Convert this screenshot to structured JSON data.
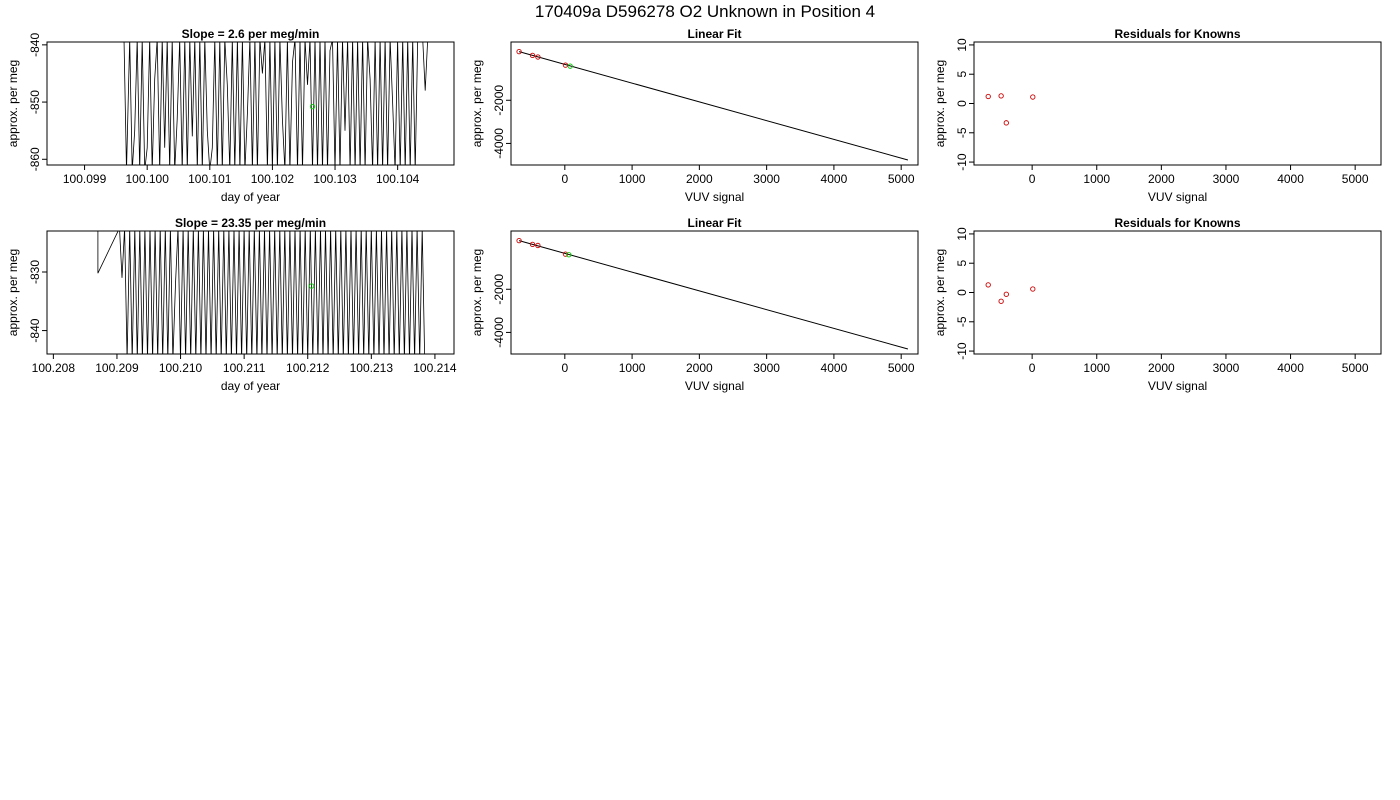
{
  "suptitle": "170409a      D596278   O2 Unknown in Position  4",
  "colors": {
    "known": "#cc0000",
    "unknown": "#00cc00",
    "line": "#000000"
  },
  "chart_data": [
    {
      "type": "line",
      "title": "Slope =  2.6  per meg/min",
      "xlabel": "day of year",
      "ylabel": "approx. per meg",
      "xlim": [
        100.0984,
        100.1049
      ],
      "ylim": [
        -861,
        -839.5
      ],
      "xticks": [
        "100.099",
        "100.100",
        "100.101",
        "100.102",
        "100.103",
        "100.104"
      ],
      "xtick_values": [
        100.099,
        100.1,
        100.101,
        100.102,
        100.103,
        100.104
      ],
      "yticks": [
        "-840",
        "-850",
        "-860"
      ],
      "ytick_values": [
        -840,
        -850,
        -860
      ],
      "trace_x": [
        100.09963,
        100.09967,
        100.09972,
        100.09976,
        100.0998,
        100.09984,
        100.09988,
        100.09992,
        100.09996,
        100.1,
        100.10004,
        100.10008,
        100.10012,
        100.10016,
        100.1002,
        100.10024,
        100.10028,
        100.10032,
        100.10036,
        100.1004,
        100.10044,
        100.10048,
        100.10052,
        100.10056,
        100.1006,
        100.10064,
        100.10068,
        100.10072,
        100.10076,
        100.1008,
        100.10084,
        100.10088,
        100.10092,
        100.10096,
        100.101,
        100.10104,
        100.10108,
        100.10112,
        100.10116,
        100.1012,
        100.10124,
        100.10128,
        100.10132,
        100.10136,
        100.1014,
        100.10144,
        100.10148,
        100.10152,
        100.10156,
        100.1016,
        100.10164,
        100.10168,
        100.10172,
        100.10176,
        100.1018,
        100.10184,
        100.10188,
        100.10192,
        100.10196,
        100.102,
        100.10204,
        100.10208,
        100.10212,
        100.10216,
        100.1022,
        100.10224,
        100.10228,
        100.10232,
        100.10236,
        100.1024,
        100.10244,
        100.10248,
        100.10252,
        100.10256,
        100.1026,
        100.10264,
        100.10268,
        100.10272,
        100.10276,
        100.1028,
        100.10284,
        100.10288,
        100.10292,
        100.10296,
        100.103,
        100.10304,
        100.10308,
        100.10312,
        100.10316,
        100.1032,
        100.10324,
        100.10328,
        100.10332,
        100.10336,
        100.1034,
        100.10344,
        100.10348,
        100.10352,
        100.10356,
        100.1036,
        100.10364,
        100.10368,
        100.10372,
        100.10376,
        100.1038,
        100.10384,
        100.10388,
        100.10392,
        100.10396,
        100.104,
        100.10404,
        100.10408,
        100.10412,
        100.10416,
        100.1042,
        100.10424,
        100.10428,
        100.10432,
        100.10436,
        100.1044,
        100.10444,
        100.10448,
        100.10452,
        100.10456,
        100.1046
      ],
      "trace_y": [
        -839,
        -862,
        -839,
        -862,
        -855,
        -839,
        -862,
        -839,
        -862,
        -858,
        -839,
        -862,
        -846,
        -839,
        -862,
        -839,
        -858,
        -839,
        -862,
        -839,
        -862,
        -853,
        -839,
        -862,
        -839,
        -862,
        -839,
        -856,
        -839,
        -862,
        -839,
        -862,
        -839,
        -855,
        -862,
        -858,
        -839,
        -862,
        -839,
        -862,
        -839,
        -847,
        -862,
        -839,
        -862,
        -839,
        -862,
        -839,
        -862,
        -852,
        -839,
        -862,
        -839,
        -862,
        -839,
        -845,
        -839,
        -862,
        -839,
        -862,
        -839,
        -862,
        -839,
        -853,
        -862,
        -839,
        -862,
        -843,
        -839,
        -862,
        -839,
        -862,
        -839,
        -847,
        -839,
        -862,
        -839,
        -862,
        -839,
        -862,
        -839,
        -862,
        -841,
        -839,
        -862,
        -839,
        -862,
        -839,
        -855,
        -839,
        -862,
        -839,
        -862,
        -839,
        -862,
        -839,
        -862,
        -839,
        -846,
        -862,
        -839,
        -862,
        -839,
        -862,
        -839,
        -862,
        -839,
        -850,
        -862,
        -839,
        -862,
        -839,
        -862,
        -839,
        -862,
        -839,
        -862,
        -839,
        -839,
        -839,
        -848,
        -839,
        -839,
        -839,
        -839
      ],
      "unknown_point": {
        "x": 100.10264,
        "y": -850.8
      }
    },
    {
      "type": "scatter",
      "title": "Linear Fit",
      "xlabel": "VUV signal",
      "ylabel": "approx. per meg",
      "xlim": [
        -800,
        5250
      ],
      "ylim": [
        -5000,
        700
      ],
      "xticks": [
        "0",
        "1000",
        "2000",
        "3000",
        "4000",
        "5000"
      ],
      "xtick_values": [
        0,
        1000,
        2000,
        3000,
        4000,
        5000
      ],
      "yticks": [
        "-2000",
        "-4000"
      ],
      "ytick_values": [
        -2000,
        -4000
      ],
      "fit_line": {
        "x": [
          -680,
          5100
        ],
        "y": [
          255,
          -4770
        ]
      },
      "known_points": [
        {
          "x": -680,
          "y": 255
        },
        {
          "x": -480,
          "y": 80
        },
        {
          "x": -400,
          "y": 5
        },
        {
          "x": 10,
          "y": -370
        }
      ],
      "unknown_point": {
        "x": 80,
        "y": -420
      }
    },
    {
      "type": "scatter",
      "title": "Residuals for Knowns",
      "xlabel": "VUV signal",
      "ylabel": "approx. per meg",
      "xlim": [
        -900,
        5400
      ],
      "ylim": [
        -10.5,
        10.5
      ],
      "xticks": [
        "0",
        "1000",
        "2000",
        "3000",
        "4000",
        "5000"
      ],
      "xtick_values": [
        0,
        1000,
        2000,
        3000,
        4000,
        5000
      ],
      "yticks": [
        "10",
        "5",
        "0",
        "-5",
        "-10"
      ],
      "ytick_values": [
        10,
        5,
        0,
        -5,
        -10
      ],
      "points": [
        {
          "x": -680,
          "y": 1.2
        },
        {
          "x": -480,
          "y": 1.3
        },
        {
          "x": -400,
          "y": -3.3
        },
        {
          "x": 10,
          "y": 1.1
        }
      ]
    },
    {
      "type": "line",
      "title": "Slope =  23.35  per meg/min",
      "xlabel": "day of year",
      "ylabel": "approx. per meg",
      "xlim": [
        100.2079,
        100.2143
      ],
      "ylim": [
        -844,
        -823
      ],
      "xticks": [
        "100.208",
        "100.209",
        "100.210",
        "100.211",
        "100.212",
        "100.213",
        "100.214"
      ],
      "xtick_values": [
        100.208,
        100.209,
        100.21,
        100.211,
        100.212,
        100.213,
        100.214
      ],
      "yticks": [
        "-830",
        "-840"
      ],
      "ytick_values": [
        -830,
        -840
      ],
      "trace_x": [
        100.20866,
        100.2087,
        100.2087,
        100.20904,
        100.20908,
        100.20912,
        100.20916,
        100.2092,
        100.20924,
        100.20928,
        100.20932,
        100.20936,
        100.2094,
        100.20944,
        100.20948,
        100.20952,
        100.20956,
        100.2096,
        100.20964,
        100.20968,
        100.20972,
        100.20976,
        100.2098,
        100.20984,
        100.20988,
        100.20992,
        100.20996,
        100.21,
        100.21004,
        100.21008,
        100.21012,
        100.21016,
        100.2102,
        100.21024,
        100.21028,
        100.21032,
        100.21036,
        100.2104,
        100.21044,
        100.21048,
        100.21052,
        100.21056,
        100.2106,
        100.21064,
        100.21068,
        100.21072,
        100.21076,
        100.2108,
        100.21084,
        100.21088,
        100.21092,
        100.21096,
        100.211,
        100.21104,
        100.21108,
        100.21112,
        100.21116,
        100.2112,
        100.21124,
        100.21128,
        100.21132,
        100.21136,
        100.2114,
        100.21144,
        100.21148,
        100.21152,
        100.21156,
        100.2116,
        100.21164,
        100.21168,
        100.21172,
        100.21176,
        100.2118,
        100.21184,
        100.21188,
        100.21192,
        100.21196,
        100.212,
        100.21204,
        100.21208,
        100.21212,
        100.21216,
        100.2122,
        100.21224,
        100.21228,
        100.21232,
        100.21236,
        100.2124,
        100.21244,
        100.21248,
        100.21252,
        100.21256,
        100.2126,
        100.21264,
        100.21268,
        100.21272,
        100.21276,
        100.2128,
        100.21284,
        100.21288,
        100.21292,
        100.21296,
        100.213,
        100.21304,
        100.21308,
        100.21312,
        100.21316,
        100.2132,
        100.21324,
        100.21328,
        100.21332,
        100.21336,
        100.2134,
        100.21344,
        100.21348,
        100.21352,
        100.21356,
        100.2136,
        100.21364,
        100.21368,
        100.21372,
        100.21376,
        100.2138,
        100.21384
      ],
      "trace_y": [
        -822.5,
        -822.5,
        -830.2,
        -822.5,
        -831,
        -822.5,
        -845,
        -822.5,
        -845,
        -822.5,
        -845,
        -822.5,
        -845,
        -822.5,
        -845,
        -822.5,
        -845,
        -822.5,
        -845,
        -822.5,
        -845,
        -822.5,
        -845,
        -822.5,
        -845,
        -832,
        -822.5,
        -845,
        -822.5,
        -845,
        -822.5,
        -845,
        -822.5,
        -845,
        -822.5,
        -845,
        -822.5,
        -845,
        -822.5,
        -845,
        -822.5,
        -845,
        -822.5,
        -845,
        -822.5,
        -845,
        -822.5,
        -845,
        -822.5,
        -845,
        -822.5,
        -845,
        -822.5,
        -845,
        -822.5,
        -845,
        -822.5,
        -845,
        -822.5,
        -845,
        -822.5,
        -845,
        -822.5,
        -845,
        -822.5,
        -845,
        -822.5,
        -845,
        -822.5,
        -845,
        -822.5,
        -845,
        -822.5,
        -845,
        -822.5,
        -845,
        -822.5,
        -845,
        -822.5,
        -845,
        -822.5,
        -845,
        -822.5,
        -845,
        -822.5,
        -845,
        -822.5,
        -845,
        -822.5,
        -845,
        -822.5,
        -845,
        -822.5,
        -845,
        -822.5,
        -845,
        -822.5,
        -845,
        -822.5,
        -845,
        -822.5,
        -845,
        -822.5,
        -845,
        -822.5,
        -845,
        -822.5,
        -845,
        -822.5,
        -845,
        -822.5,
        -845,
        -822.5,
        -845,
        -822.5,
        -845,
        -822.5,
        -845,
        -822.5,
        -845,
        -822.5,
        -845,
        -822.5,
        -845
      ],
      "unknown_point": {
        "x": 100.21206,
        "y": -832.4
      }
    },
    {
      "type": "scatter",
      "title": "Linear Fit",
      "xlabel": "VUV signal",
      "ylabel": "approx. per meg",
      "xlim": [
        -800,
        5250
      ],
      "ylim": [
        -5000,
        700
      ],
      "xticks": [
        "0",
        "1000",
        "2000",
        "3000",
        "4000",
        "5000"
      ],
      "xtick_values": [
        0,
        1000,
        2000,
        3000,
        4000,
        5000
      ],
      "yticks": [
        "-2000",
        "-4000"
      ],
      "ytick_values": [
        -2000,
        -4000
      ],
      "fit_line": {
        "x": [
          -680,
          5100
        ],
        "y": [
          255,
          -4770
        ]
      },
      "known_points": [
        {
          "x": -680,
          "y": 255
        },
        {
          "x": -480,
          "y": 80
        },
        {
          "x": -400,
          "y": 30
        },
        {
          "x": 10,
          "y": -370
        }
      ],
      "unknown_point": {
        "x": 60,
        "y": -400
      }
    },
    {
      "type": "scatter",
      "title": "Residuals for Knowns",
      "xlabel": "VUV signal",
      "ylabel": "approx. per meg",
      "xlim": [
        -900,
        5400
      ],
      "ylim": [
        -10.5,
        10.5
      ],
      "xticks": [
        "0",
        "1000",
        "2000",
        "3000",
        "4000",
        "5000"
      ],
      "xtick_values": [
        0,
        1000,
        2000,
        3000,
        4000,
        5000
      ],
      "yticks": [
        "10",
        "5",
        "0",
        "-5",
        "-10"
      ],
      "ytick_values": [
        10,
        5,
        0,
        -5,
        -10
      ],
      "points": [
        {
          "x": -680,
          "y": 1.3
        },
        {
          "x": -480,
          "y": -1.5
        },
        {
          "x": -400,
          "y": -0.3
        },
        {
          "x": 10,
          "y": 0.6
        }
      ]
    }
  ]
}
